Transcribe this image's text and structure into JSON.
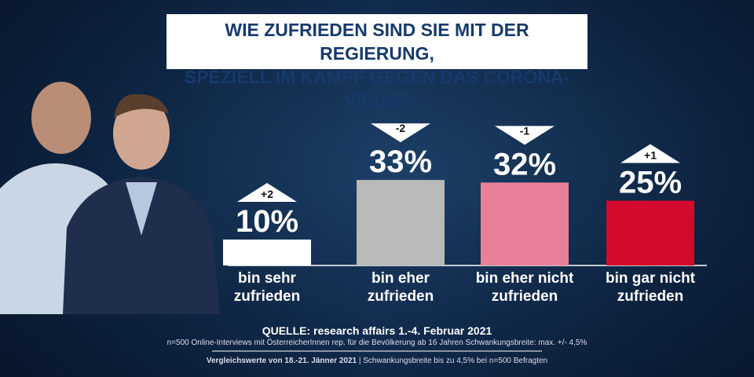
{
  "chart_data": {
    "type": "bar",
    "title": [
      "WIE ZUFRIEDEN SIND SIE MIT DER REGIERUNG,",
      "SPEZIELL IM KAMPF GEGEN DAS CORONA-VIRUS?"
    ],
    "categories": [
      "bin sehr zufrieden",
      "bin eher zufrieden",
      "bin eher nicht zufrieden",
      "bin gar nicht zufrieden"
    ],
    "values": [
      10,
      33,
      32,
      25
    ],
    "value_labels": [
      "10%",
      "33%",
      "32%",
      "25%"
    ],
    "changes": [
      2,
      -2,
      -1,
      1
    ],
    "change_labels": [
      "+2",
      "-2",
      "-1",
      "+1"
    ],
    "colors": [
      "#ffffff",
      "#b9b9b9",
      "#e8809a",
      "#d3092e"
    ],
    "source": "QUELLE: research affairs 1.-4. Februar 2021",
    "note": "n=500 Online-Interviews mit ÖsterreicherInnen rep. für die Bevölkerung ab 16 Jahren  Schwankungsbreite: max. +/- 4,5%",
    "comparison": "Vergleichswerte von 18.-21. Jänner 2021",
    "comparison_note": "Schwankungsbreite bis zu 4,5% bei n=500 Befragten"
  }
}
